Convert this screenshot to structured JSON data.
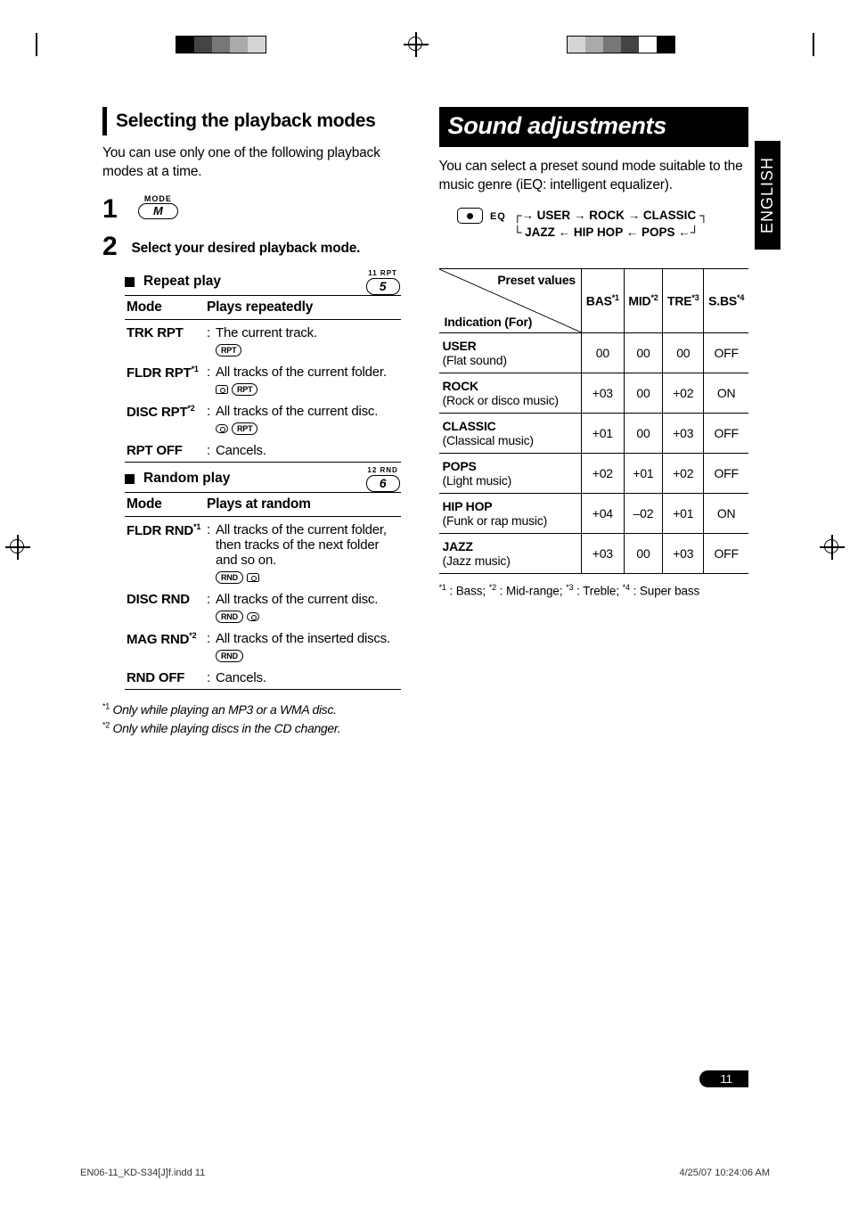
{
  "lang_tab": "ENGLISH",
  "page_number": "11",
  "footer": {
    "file": "EN06-11_KD-S34[J]f.indd   11",
    "timestamp": "4/25/07   10:24:06 AM"
  },
  "left": {
    "heading": "Selecting the playback modes",
    "intro": "You can use only one of the following playback modes at a time.",
    "step1_num": "1",
    "mode_small": "MODE",
    "mode_m": "M",
    "step2_num": "2",
    "step2_text": "Select your desired playback mode.",
    "repeat": {
      "title": "Repeat play",
      "key_label": "11  RPT",
      "key_num": "5",
      "headers": [
        "Mode",
        "Plays repeatedly"
      ],
      "rows": [
        {
          "mode": "TRK RPT",
          "desc": "The current track.",
          "icons": [
            "RPT"
          ]
        },
        {
          "mode": "FLDR RPT",
          "sup": "*1",
          "desc": "All tracks of the current folder.",
          "icons": [
            "folder",
            "RPT"
          ]
        },
        {
          "mode": "DISC RPT",
          "sup": "*2",
          "desc": "All tracks of the current disc.",
          "icons": [
            "disc",
            "RPT"
          ]
        },
        {
          "mode": "RPT OFF",
          "desc": "Cancels."
        }
      ]
    },
    "random": {
      "title": "Random play",
      "key_label": "12  RND",
      "key_num": "6",
      "headers": [
        "Mode",
        "Plays at random"
      ],
      "rows": [
        {
          "mode": "FLDR RND",
          "sup": "*1",
          "desc": "All tracks of the current folder, then tracks of the next folder and so on.",
          "icons": [
            "RND",
            "folder"
          ]
        },
        {
          "mode": "DISC RND",
          "desc": "All tracks of the current disc.",
          "icons": [
            "RND",
            "disc"
          ]
        },
        {
          "mode": "MAG RND",
          "sup": "*2",
          "desc": "All tracks of the inserted discs.",
          "icons": [
            "RND"
          ]
        },
        {
          "mode": "RND OFF",
          "desc": "Cancels."
        }
      ]
    },
    "notes": [
      {
        "sup": "*1",
        "text": "Only while playing an MP3 or a WMA disc."
      },
      {
        "sup": "*2",
        "text": "Only while playing discs in the CD changer."
      }
    ]
  },
  "right": {
    "heading": "Sound adjustments",
    "intro": "You can select a preset sound mode suitable to the music genre (iEQ: intelligent equalizer).",
    "eq_label": "EQ",
    "chain": [
      "USER",
      "ROCK",
      "CLASSIC",
      "JAZZ",
      "HIP HOP",
      "POPS"
    ],
    "table": {
      "diag_top": "Preset values",
      "diag_bot": "Indication (For)",
      "cols": [
        {
          "label": "BAS",
          "sup": "*1"
        },
        {
          "label": "MID",
          "sup": "*2"
        },
        {
          "label": "TRE",
          "sup": "*3"
        },
        {
          "label": "S.BS",
          "sup": "*4"
        }
      ],
      "rows": [
        {
          "name": "USER",
          "sub": "(Flat sound)",
          "vals": [
            "00",
            "00",
            "00",
            "OFF"
          ]
        },
        {
          "name": "ROCK",
          "sub": "(Rock or disco music)",
          "vals": [
            "+03",
            "00",
            "+02",
            "ON"
          ]
        },
        {
          "name": "CLASSIC",
          "sub": "(Classical music)",
          "vals": [
            "+01",
            "00",
            "+03",
            "OFF"
          ]
        },
        {
          "name": "POPS",
          "sub": "(Light music)",
          "vals": [
            "+02",
            "+01",
            "+02",
            "OFF"
          ]
        },
        {
          "name": "HIP HOP",
          "sub": "(Funk or rap music)",
          "vals": [
            "+04",
            "–02",
            "+01",
            "ON"
          ]
        },
        {
          "name": "JAZZ",
          "sub": "(Jazz music)",
          "vals": [
            "+03",
            "00",
            "+03",
            "OFF"
          ]
        }
      ]
    },
    "footnote_parts": [
      {
        "sup": "*1",
        "text": ": Bass; "
      },
      {
        "sup": "*2",
        "text": ": Mid-range; "
      },
      {
        "sup": "*3",
        "text": ": Treble; "
      },
      {
        "sup": "*4",
        "text": ": Super bass"
      }
    ]
  }
}
